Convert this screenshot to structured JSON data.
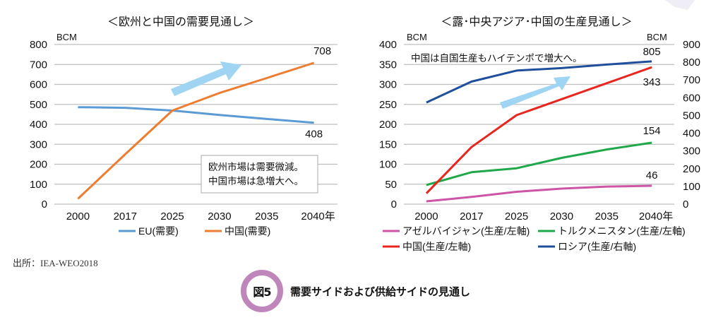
{
  "figure": {
    "number_label": "図5",
    "title": "需要サイドおよび供給サイドの見通し",
    "source": "出所：IEA-WEO2018"
  },
  "colors": {
    "eu": "#5b9bd5",
    "china_demand": "#ed7d31",
    "azerbaijan": "#cc55a6",
    "turkmenistan": "#1fa84a",
    "china_production": "#e8261f",
    "russia": "#1f4e9c",
    "arrow": "#9fd5f2",
    "grid": "#bfbfbf",
    "badge_ring": "#bf86bb"
  },
  "chart_data": [
    {
      "type": "line",
      "title": "＜欧州と中国の需要見通し＞",
      "ylabel": "BCM",
      "xlabel": "",
      "categories": [
        "2000",
        "2017",
        "2025",
        "2030",
        "2035",
        "2040年"
      ],
      "ylim": [
        0,
        800
      ],
      "yticks": [
        0,
        100,
        200,
        300,
        400,
        500,
        600,
        700,
        800
      ],
      "grid": true,
      "legend_position": "bottom",
      "series": [
        {
          "name": "EU(需要)",
          "color_key": "eu",
          "values": [
            486,
            483,
            469,
            447,
            427,
            408
          ],
          "end_label": "408"
        },
        {
          "name": "中国(需要)",
          "color_key": "china_demand",
          "values": [
            27,
            250,
            469,
            557,
            632,
            708
          ],
          "end_label": "708"
        }
      ],
      "annotations": [
        {
          "text_lines": [
            "欧州市場は需要微減。",
            "中国市場は急増大へ。"
          ],
          "type": "boxed-note"
        },
        {
          "type": "up-arrow",
          "meaning": "increase"
        }
      ]
    },
    {
      "type": "line",
      "title": "＜露･中央アジア･中国の生産見通し＞",
      "ylabel": "BCM",
      "ylabel_right": "BCM",
      "categories": [
        "2000",
        "2017",
        "2025",
        "2030",
        "2035",
        "2040年"
      ],
      "ylim": [
        0,
        400
      ],
      "yticks": [
        0,
        50,
        100,
        150,
        200,
        250,
        300,
        350,
        400
      ],
      "ylim_right": [
        0,
        900
      ],
      "yticks_right": [
        0,
        100,
        200,
        300,
        400,
        500,
        600,
        700,
        800,
        900
      ],
      "grid": true,
      "legend_position": "bottom",
      "series": [
        {
          "name": "アゼルバイジャン(生産/左軸)",
          "color_key": "azerbaijan",
          "axis": "left",
          "values": [
            7,
            18,
            31,
            39,
            44,
            46
          ],
          "end_label": "46"
        },
        {
          "name": "トルクメニスタン(生産/左軸)",
          "color_key": "turkmenistan",
          "axis": "left",
          "values": [
            48,
            80,
            90,
            116,
            137,
            154
          ],
          "end_label": "154"
        },
        {
          "name": "中国(生産/左軸)",
          "color_key": "china_production",
          "axis": "left",
          "values": [
            27,
            143,
            223,
            263,
            303,
            343
          ],
          "end_label": "343"
        },
        {
          "name": "ロシア(生産/右軸)",
          "color_key": "russia",
          "axis": "right",
          "values": [
            573,
            691,
            753,
            767,
            787,
            805
          ],
          "end_label": "805"
        }
      ],
      "annotations": [
        {
          "text_lines": [
            "中国は自国生産もハイテンポで増大へ。"
          ],
          "type": "note"
        },
        {
          "type": "up-arrow",
          "meaning": "increase"
        }
      ]
    }
  ]
}
